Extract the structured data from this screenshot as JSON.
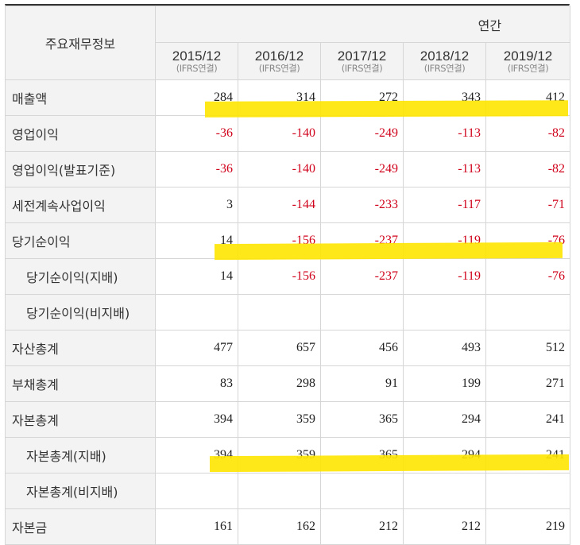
{
  "header": {
    "title": "주요재무정보",
    "period_group": "연간",
    "years": [
      {
        "label": "2015/12",
        "sub": "(IFRS연결)"
      },
      {
        "label": "2016/12",
        "sub": "(IFRS연결)"
      },
      {
        "label": "2017/12",
        "sub": "(IFRS연결)"
      },
      {
        "label": "2018/12",
        "sub": "(IFRS연결)"
      },
      {
        "label": "2019/12",
        "sub": "(IFRS연결)"
      }
    ]
  },
  "rows": [
    {
      "label": "매출액",
      "indent": false,
      "values": [
        "284",
        "314",
        "272",
        "343",
        "412"
      ]
    },
    {
      "label": "영업이익",
      "indent": false,
      "values": [
        "-36",
        "-140",
        "-249",
        "-113",
        "-82"
      ]
    },
    {
      "label": "영업이익(발표기준)",
      "indent": false,
      "values": [
        "-36",
        "-140",
        "-249",
        "-113",
        "-82"
      ]
    },
    {
      "label": "세전계속사업이익",
      "indent": false,
      "values": [
        "3",
        "-144",
        "-233",
        "-117",
        "-71"
      ]
    },
    {
      "label": "당기순이익",
      "indent": false,
      "values": [
        "14",
        "-156",
        "-237",
        "-119",
        "-76"
      ]
    },
    {
      "label": "당기순이익(지배)",
      "indent": true,
      "values": [
        "14",
        "-156",
        "-237",
        "-119",
        "-76"
      ]
    },
    {
      "label": "당기순이익(비지배)",
      "indent": true,
      "values": [
        "",
        "",
        "",
        "",
        ""
      ]
    },
    {
      "label": "자산총계",
      "indent": false,
      "values": [
        "477",
        "657",
        "456",
        "493",
        "512"
      ]
    },
    {
      "label": "부채총계",
      "indent": false,
      "values": [
        "83",
        "298",
        "91",
        "199",
        "271"
      ]
    },
    {
      "label": "자본총계",
      "indent": false,
      "values": [
        "394",
        "359",
        "365",
        "294",
        "241"
      ]
    },
    {
      "label": "자본총계(지배)",
      "indent": true,
      "values": [
        "394",
        "359",
        "365",
        "294",
        "241"
      ]
    },
    {
      "label": "자본총계(비지배)",
      "indent": true,
      "values": [
        "",
        "",
        "",
        "",
        ""
      ]
    },
    {
      "label": "자본금",
      "indent": false,
      "values": [
        "161",
        "162",
        "212",
        "212",
        "219"
      ]
    }
  ],
  "colors": {
    "negative": "#d0021b",
    "highlight": "#ffe500"
  }
}
